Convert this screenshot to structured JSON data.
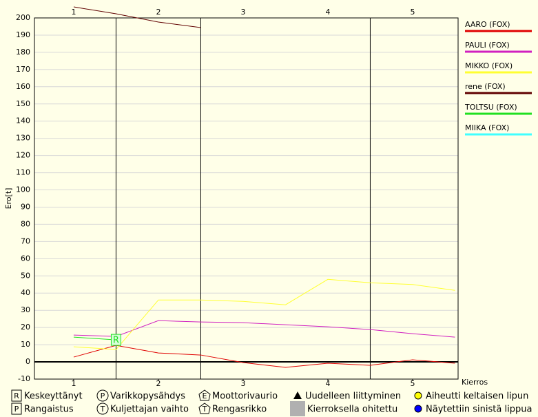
{
  "chart_data": {
    "type": "line",
    "y_label": "Ero[t]",
    "x_label": "Kierros",
    "xlim": [
      0.537,
      5.537
    ],
    "xticks": [
      1,
      2,
      3,
      4,
      5
    ],
    "ylim": [
      -10,
      200
    ],
    "yticks": [
      -10,
      0,
      10,
      20,
      30,
      40,
      50,
      60,
      70,
      80,
      90,
      100,
      110,
      120,
      130,
      140,
      150,
      160,
      170,
      180,
      190,
      200
    ],
    "grid": true,
    "vlines": [
      1.5,
      2.5,
      4.5
    ],
    "series": [
      {
        "name": "AARO (FOX)",
        "color": "#e00000",
        "x": [
          1,
          1.5,
          2,
          2.5,
          3,
          3.5,
          4,
          4.5,
          5,
          5.5
        ],
        "values": [
          2.8,
          9.6,
          5.2,
          4,
          -0.4,
          -3.2,
          -0.8,
          -2,
          1.2,
          -0.8
        ]
      },
      {
        "name": "PAULI (FOX)",
        "color": "#d020c0",
        "x": [
          1,
          1.5,
          2,
          2.5,
          3,
          3.5,
          4,
          4.5,
          5,
          5.5
        ],
        "values": [
          15.6,
          14.8,
          24,
          23.2,
          22.8,
          21.6,
          20.4,
          18.8,
          16.4,
          14.4
        ]
      },
      {
        "name": "MIKKO (FOX)",
        "color": "#ffff30",
        "x": [
          1,
          1.5,
          2,
          2.5,
          3,
          3.5,
          4,
          4.5,
          5,
          5.5
        ],
        "values": [
          8.8,
          7.2,
          36,
          36,
          35.2,
          33.2,
          48,
          46,
          45,
          41.6
        ]
      },
      {
        "name": "rene (FOX)",
        "color": "#600000",
        "x": [
          1,
          1.5,
          2,
          2.5
        ],
        "values": [
          206.4,
          202.4,
          197.6,
          194.4
        ]
      },
      {
        "name": "TOLTSU (FOX)",
        "color": "#20e020",
        "x": [
          1,
          1.5
        ],
        "values": [
          14.4,
          12.8
        ],
        "end_marker": "R"
      },
      {
        "name": "MIIKA (FOX)",
        "color": "#40ffff",
        "x": [],
        "values": []
      }
    ],
    "legend_items": [
      {
        "shape": "box",
        "symbol": "R",
        "label": "Keskeyttänyt"
      },
      {
        "shape": "circle",
        "symbol": "P",
        "label": "Varikkopysähdys"
      },
      {
        "shape": "pentagon",
        "symbol": "E",
        "label": "Moottorivaurio"
      },
      {
        "shape": "triangle",
        "label": "Uudelleen liittyminen"
      },
      {
        "shape": "dot",
        "color": "#ffff00",
        "label": "Aiheutti keltaisen lipun"
      },
      {
        "shape": "box",
        "symbol": "P",
        "label": "Rangaistus"
      },
      {
        "shape": "circle",
        "symbol": "T",
        "label": "Kuljettajan vaihto"
      },
      {
        "shape": "pentagon",
        "symbol": "T",
        "label": "Rengasrikko"
      },
      {
        "shape": "square",
        "color": "#b0b0b0",
        "label": "Kierroksella ohitettu"
      },
      {
        "shape": "dot",
        "color": "#0000ff",
        "label": "Näytettiin sinistä lippua"
      }
    ]
  }
}
